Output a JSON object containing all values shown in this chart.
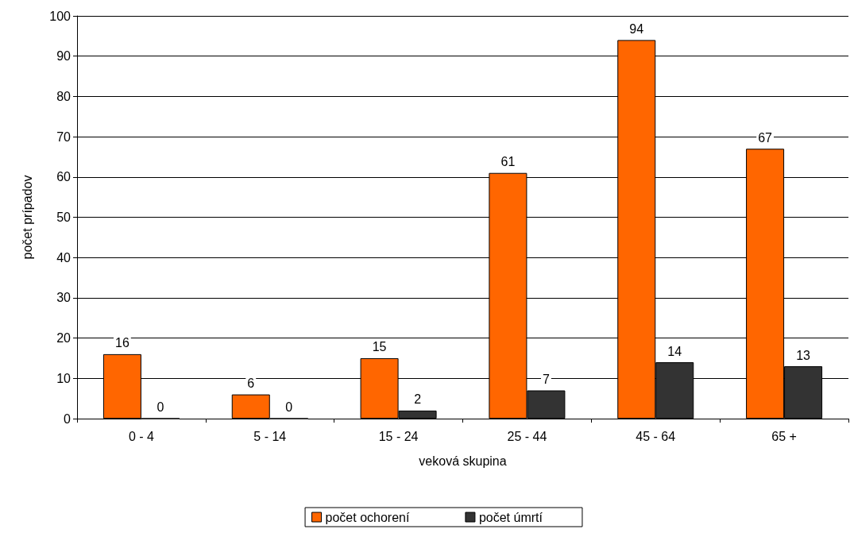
{
  "chart_data": {
    "type": "bar",
    "xlabel": "veková skupina",
    "ylabel": "počet prípadov",
    "categories": [
      "0 - 4",
      "5 - 14",
      "15 - 24",
      "25 - 44",
      "45 - 64",
      "65 +"
    ],
    "series": [
      {
        "name": "počet ochorení",
        "color": "#ff6600",
        "values": [
          16,
          6,
          15,
          61,
          94,
          67
        ]
      },
      {
        "name": "počet úmrtí",
        "color": "#333333",
        "values": [
          0,
          0,
          2,
          7,
          14,
          13
        ]
      }
    ],
    "ylim": [
      0,
      100
    ],
    "yticks": [
      0,
      10,
      20,
      30,
      40,
      50,
      60,
      70,
      80,
      90,
      100
    ],
    "grid": "y",
    "legend": "bottom",
    "data_labels": true
  }
}
